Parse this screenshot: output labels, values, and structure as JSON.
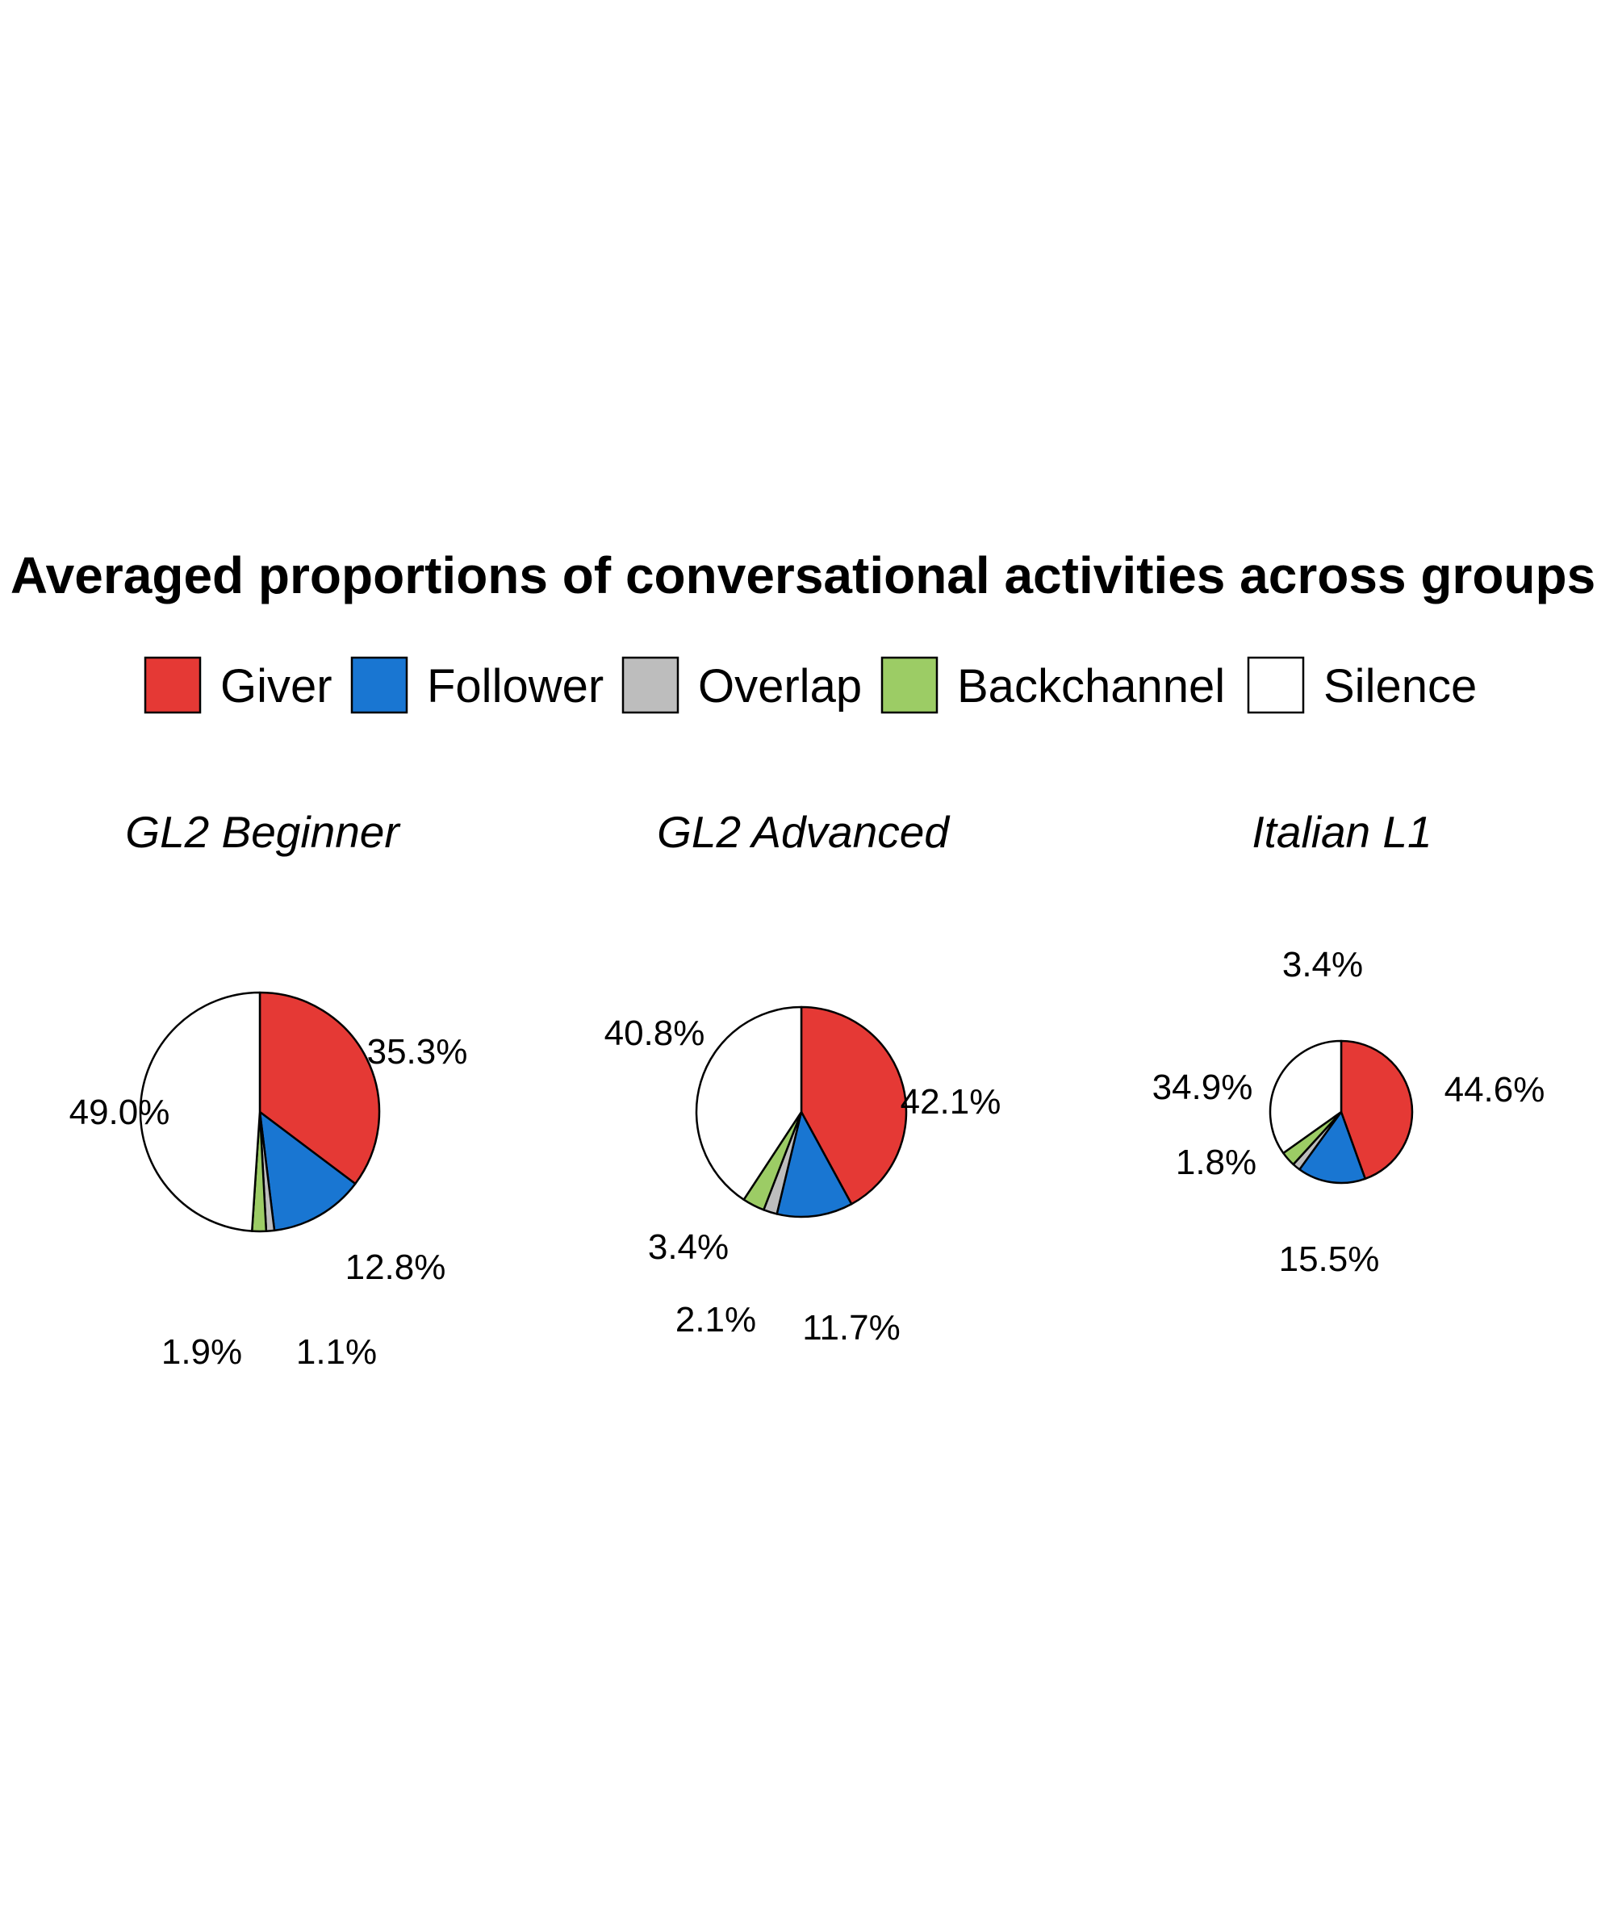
{
  "chart_data": {
    "type": "pie",
    "title": "Averaged proportions of conversational activities across groups",
    "legend": {
      "position": "top",
      "items": [
        {
          "name": "Giver",
          "color": "#E53935"
        },
        {
          "name": "Follower",
          "color": "#1976D2"
        },
        {
          "name": "Overlap",
          "color": "#BDBDBD"
        },
        {
          "name": "Backchannel",
          "color": "#9CCC65"
        },
        {
          "name": "Silence",
          "color": "#FFFFFF"
        }
      ]
    },
    "panels": [
      {
        "name": "GL2 Beginner",
        "slices": [
          {
            "category": "Giver",
            "value": 35.3,
            "label": "35.3%"
          },
          {
            "category": "Follower",
            "value": 12.8,
            "label": "12.8%"
          },
          {
            "category": "Overlap",
            "value": 1.1,
            "label": "1.1%"
          },
          {
            "category": "Backchannel",
            "value": 1.9,
            "label": "1.9%"
          },
          {
            "category": "Silence",
            "value": 49.0,
            "label": "49.0%"
          }
        ]
      },
      {
        "name": "GL2 Advanced",
        "slices": [
          {
            "category": "Giver",
            "value": 42.1,
            "label": "42.1%"
          },
          {
            "category": "Follower",
            "value": 11.7,
            "label": "11.7%"
          },
          {
            "category": "Overlap",
            "value": 2.1,
            "label": "2.1%"
          },
          {
            "category": "Backchannel",
            "value": 3.4,
            "label": "3.4%"
          },
          {
            "category": "Silence",
            "value": 40.8,
            "label": "40.8%"
          }
        ]
      },
      {
        "name": "Italian L1",
        "slices": [
          {
            "category": "Giver",
            "value": 44.6,
            "label": "44.6%"
          },
          {
            "category": "Follower",
            "value": 15.5,
            "label": "15.5%"
          },
          {
            "category": "Overlap",
            "value": 1.8,
            "label": "1.8%"
          },
          {
            "category": "Backchannel",
            "value": 3.4,
            "label": "3.4%"
          },
          {
            "category": "Silence",
            "value": 34.9,
            "label": "34.9%"
          }
        ]
      }
    ]
  }
}
